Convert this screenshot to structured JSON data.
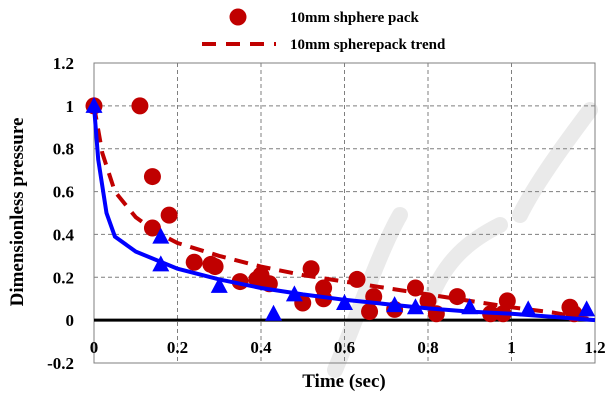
{
  "colors": {
    "series_red": "#c00000",
    "series_blue": "#0000ff",
    "watermark": "#d9d9d9"
  },
  "chart_data": {
    "type": "scatter",
    "title": "",
    "xlabel": "Time (sec)",
    "ylabel": "Dimensionless pressure",
    "xlim": [
      0,
      1.2
    ],
    "ylim": [
      -0.2,
      1.2
    ],
    "grid": true,
    "legend_position": "top-center",
    "x_tick_labels": [
      "0",
      "0.2",
      "0.4",
      "0.6",
      "0.8",
      "1",
      "1.2"
    ],
    "y_tick_labels": [
      "-0.2",
      "0",
      "0.2",
      "0.4",
      "0.6",
      "0.8",
      "1",
      "1.2"
    ],
    "legend": [
      {
        "label": "10mm shphere pack",
        "marker": "circle",
        "color": "#c00000"
      },
      {
        "label": "10mm spherepack trend",
        "marker": "dashed-line",
        "color": "#c00000"
      }
    ],
    "series": [
      {
        "name": "10mm shphere pack",
        "kind": "scatter",
        "marker": "circle",
        "color": "#c00000",
        "points": [
          [
            0,
            1.0
          ],
          [
            0.11,
            1.0
          ],
          [
            0.14,
            0.67
          ],
          [
            0.14,
            0.43
          ],
          [
            0.18,
            0.49
          ],
          [
            0.24,
            0.27
          ],
          [
            0.28,
            0.26
          ],
          [
            0.29,
            0.25
          ],
          [
            0.35,
            0.18
          ],
          [
            0.39,
            0.19
          ],
          [
            0.4,
            0.21
          ],
          [
            0.42,
            0.17
          ],
          [
            0.5,
            0.08
          ],
          [
            0.52,
            0.24
          ],
          [
            0.55,
            0.15
          ],
          [
            0.55,
            0.1
          ],
          [
            0.63,
            0.19
          ],
          [
            0.66,
            0.04
          ],
          [
            0.67,
            0.11
          ],
          [
            0.72,
            0.05
          ],
          [
            0.77,
            0.15
          ],
          [
            0.8,
            0.09
          ],
          [
            0.82,
            0.03
          ],
          [
            0.87,
            0.11
          ],
          [
            0.95,
            0.03
          ],
          [
            0.98,
            0.03
          ],
          [
            0.99,
            0.09
          ],
          [
            1.14,
            0.06
          ],
          [
            1.15,
            0.03
          ]
        ]
      },
      {
        "name": "10mm spherepack trend",
        "kind": "line",
        "style": "dashed",
        "color": "#c00000",
        "points": [
          [
            0,
            1.0
          ],
          [
            0.02,
            0.78
          ],
          [
            0.05,
            0.6
          ],
          [
            0.1,
            0.48
          ],
          [
            0.15,
            0.41
          ],
          [
            0.2,
            0.36
          ],
          [
            0.3,
            0.3
          ],
          [
            0.4,
            0.25
          ],
          [
            0.5,
            0.21
          ],
          [
            0.6,
            0.18
          ],
          [
            0.7,
            0.15
          ],
          [
            0.8,
            0.12
          ],
          [
            0.9,
            0.09
          ],
          [
            1.0,
            0.06
          ],
          [
            1.1,
            0.035
          ],
          [
            1.2,
            0.0
          ]
        ]
      },
      {
        "kind": "scatter",
        "marker": "triangle",
        "color": "#0000ff",
        "points": [
          [
            0,
            1.0
          ],
          [
            0.16,
            0.39
          ],
          [
            0.16,
            0.26
          ],
          [
            0.3,
            0.16
          ],
          [
            0.43,
            0.03
          ],
          [
            0.48,
            0.12
          ],
          [
            0.6,
            0.08
          ],
          [
            0.72,
            0.07
          ],
          [
            0.77,
            0.06
          ],
          [
            0.9,
            0.06
          ],
          [
            1.04,
            0.05
          ],
          [
            1.18,
            0.05
          ]
        ]
      },
      {
        "kind": "line",
        "style": "solid",
        "color": "#0000ff",
        "points": [
          [
            0,
            1.0
          ],
          [
            0.01,
            0.75
          ],
          [
            0.03,
            0.5
          ],
          [
            0.05,
            0.39
          ],
          [
            0.1,
            0.32
          ],
          [
            0.2,
            0.24
          ],
          [
            0.3,
            0.19
          ],
          [
            0.4,
            0.15
          ],
          [
            0.5,
            0.12
          ],
          [
            0.6,
            0.095
          ],
          [
            0.7,
            0.075
          ],
          [
            0.8,
            0.055
          ],
          [
            0.9,
            0.04
          ],
          [
            1.0,
            0.03
          ],
          [
            1.1,
            0.015
          ],
          [
            1.2,
            0.0
          ]
        ]
      }
    ]
  }
}
